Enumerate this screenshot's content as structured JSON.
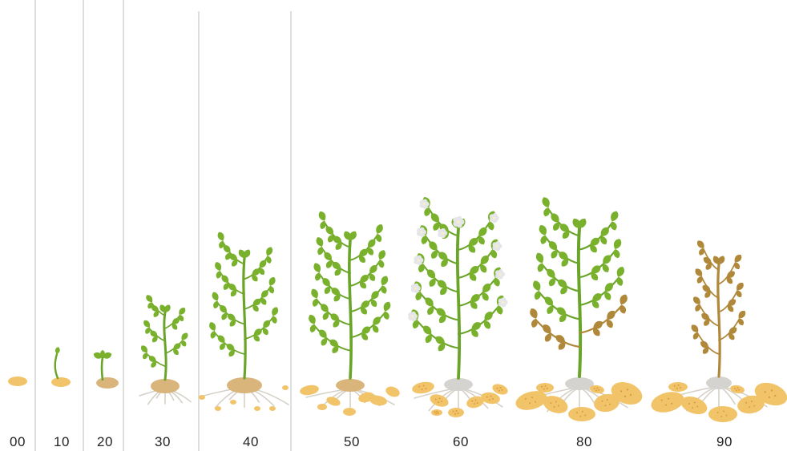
{
  "colors": {
    "leaf": "#79b12d",
    "leaf_dark": "#5e9a22",
    "stem": "#6aa52a",
    "wilt": "#b0883a",
    "tuber": "#f2c46a",
    "tuber_spot": "#dc9a3a",
    "seed_tuber": "#d9b57c",
    "root": "#d6d1c8",
    "flower": "#e6e6ea",
    "divider": "#bdbdbd",
    "label": "#222222"
  },
  "stages": [
    {
      "code": "00",
      "icon": "seed-tuber-icon"
    },
    {
      "code": "10",
      "icon": "sprouting-tuber-icon"
    },
    {
      "code": "20",
      "icon": "emerging-seedling-icon"
    },
    {
      "code": "30",
      "icon": "young-plant-icon"
    },
    {
      "code": "40",
      "icon": "tuber-initiation-plant-icon"
    },
    {
      "code": "50",
      "icon": "tuber-bulking-plant-icon"
    },
    {
      "code": "60",
      "icon": "flowering-plant-icon"
    },
    {
      "code": "80",
      "icon": "maturing-plant-icon"
    },
    {
      "code": "90",
      "icon": "senescent-plant-icon"
    }
  ]
}
